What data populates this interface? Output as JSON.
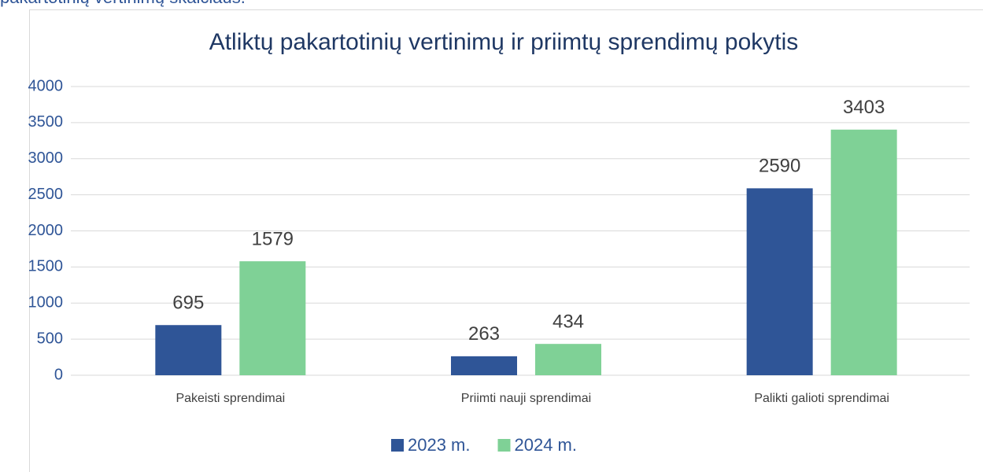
{
  "text": "pakartotinių vertinimų skaičiaus.",
  "chart_data": {
    "type": "bar",
    "title": "Atliktų pakartotinių vertinimų ir priimtų sprendimų pokytis",
    "categories": [
      "Pakeisti sprendimai",
      "Priimti nauji sprendimai",
      "Palikti galioti sprendimai"
    ],
    "series": [
      {
        "name": "2023 m.",
        "color": "#2f5597",
        "values": [
          695,
          263,
          2590
        ]
      },
      {
        "name": "2024 m.",
        "color": "#7fd196",
        "values": [
          1579,
          434,
          3403
        ]
      }
    ],
    "ylim": [
      0,
      4000
    ],
    "yticks": [
      0,
      500,
      1000,
      1500,
      2000,
      2500,
      3000,
      3500,
      4000
    ],
    "grid": true,
    "legend": "bottom"
  }
}
